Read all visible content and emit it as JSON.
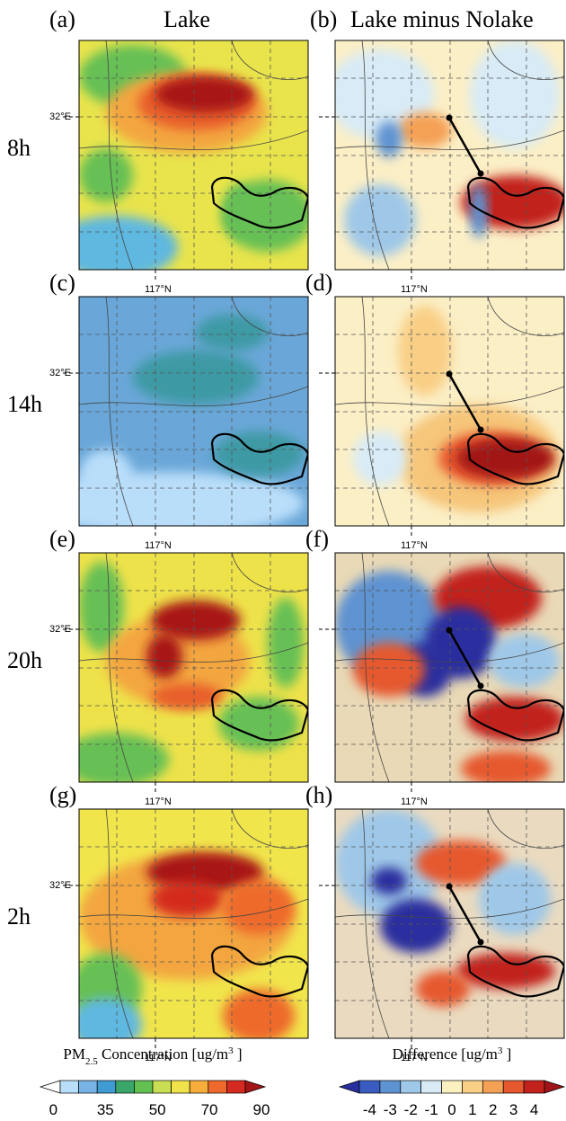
{
  "columns": [
    "Lake",
    "Lake minus Nolake"
  ],
  "rows": [
    {
      "label": "8h",
      "panels": [
        "(a)",
        "(b)"
      ]
    },
    {
      "label": "14h",
      "panels": [
        "(c)",
        "(d)"
      ]
    },
    {
      "label": "20h",
      "panels": [
        "(e)",
        "(f)"
      ]
    },
    {
      "label": "2h",
      "panels": [
        "(g)",
        "(h)"
      ]
    }
  ],
  "axis_labels": {
    "lat": "32°E",
    "lon": "117°N"
  },
  "colorbars": [
    {
      "title": [
        "PM",
        "2.5",
        " Concentration [ug/m",
        "3",
        " ]"
      ],
      "ticks": [
        0,
        35,
        50,
        70,
        90
      ],
      "colors": [
        "#ffffff",
        "#b9defa",
        "#79b3e6",
        "#3f9bd2",
        "#3aa66a",
        "#63c152",
        "#c9de52",
        "#f0e24a",
        "#f6ad3c",
        "#ee6a2c",
        "#d42a1f",
        "#a31516"
      ]
    },
    {
      "title": [
        "Difference [ug/m",
        "3",
        " ]"
      ],
      "ticks": [
        -4,
        -3,
        -2,
        -1,
        0,
        1,
        2,
        3,
        4
      ],
      "colors": [
        "#2a2f9e",
        "#3a5cc0",
        "#5e93d1",
        "#9fc8e8",
        "#d8ebf6",
        "#fbf0c0",
        "#f9cf86",
        "#f4a055",
        "#e6582e",
        "#c2211c",
        "#9e1418"
      ]
    }
  ]
}
